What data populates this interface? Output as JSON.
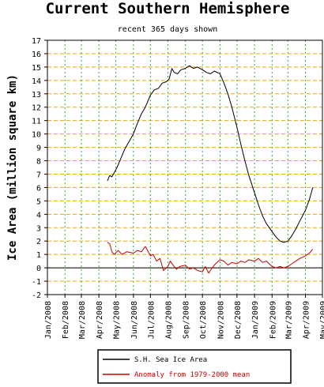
{
  "chart_data": {
    "type": "line",
    "title": "Current Southern Hemisphere",
    "subtitle": "recent 365 days shown",
    "ylabel": "Ice Area (million square km)",
    "xlabel": "",
    "ylim": [
      -2,
      17
    ],
    "yticks": [
      -2,
      -1,
      0,
      1,
      2,
      3,
      4,
      5,
      6,
      7,
      8,
      9,
      10,
      11,
      12,
      13,
      14,
      15,
      16,
      17
    ],
    "xlim": [
      "2008-01-01",
      "2009-05-01"
    ],
    "xticks": [
      {
        "date": "2008-01-01",
        "label": "Jan/2008"
      },
      {
        "date": "2008-02-01",
        "label": "Feb/2008"
      },
      {
        "date": "2008-03-01",
        "label": "Mar/2008"
      },
      {
        "date": "2008-04-01",
        "label": "Apr/2008"
      },
      {
        "date": "2008-05-01",
        "label": "May/2008"
      },
      {
        "date": "2008-06-01",
        "label": "Jun/2008"
      },
      {
        "date": "2008-07-01",
        "label": "Jul/2008"
      },
      {
        "date": "2008-08-01",
        "label": "Aug/2008"
      },
      {
        "date": "2008-09-01",
        "label": "Sep/2008"
      },
      {
        "date": "2008-10-01",
        "label": "Oct/2008"
      },
      {
        "date": "2008-11-01",
        "label": "Nov/2008"
      },
      {
        "date": "2008-12-01",
        "label": "Dec/2008"
      },
      {
        "date": "2009-01-01",
        "label": "Jan/2009"
      },
      {
        "date": "2009-02-01",
        "label": "Feb/2009"
      },
      {
        "date": "2009-03-01",
        "label": "Mar/2009"
      },
      {
        "date": "2009-04-01",
        "label": "Apr/2009"
      },
      {
        "date": "2009-05-01",
        "label": "May/2009"
      }
    ],
    "grid": true,
    "grid_colors": {
      "horizontal": "#e8a800",
      "vertical": "#33aa33"
    },
    "zero_line": true,
    "legend_position": "bottom",
    "series": [
      {
        "name": "S.H. Sea Ice Area",
        "color": "#000000",
        "points": [
          [
            "2008-04-16",
            6.5
          ],
          [
            "2008-04-20",
            6.9
          ],
          [
            "2008-04-24",
            6.8
          ],
          [
            "2008-04-28",
            7.1
          ],
          [
            "2008-05-03",
            7.5
          ],
          [
            "2008-05-10",
            8.2
          ],
          [
            "2008-05-17",
            8.9
          ],
          [
            "2008-05-24",
            9.4
          ],
          [
            "2008-06-01",
            10.0
          ],
          [
            "2008-06-08",
            10.8
          ],
          [
            "2008-06-15",
            11.5
          ],
          [
            "2008-06-22",
            12.0
          ],
          [
            "2008-07-01",
            12.9
          ],
          [
            "2008-07-08",
            13.3
          ],
          [
            "2008-07-15",
            13.4
          ],
          [
            "2008-07-22",
            13.8
          ],
          [
            "2008-07-29",
            13.9
          ],
          [
            "2008-08-03",
            14.1
          ],
          [
            "2008-08-08",
            14.9
          ],
          [
            "2008-08-12",
            14.6
          ],
          [
            "2008-08-18",
            14.5
          ],
          [
            "2008-08-24",
            14.8
          ],
          [
            "2008-09-01",
            14.9
          ],
          [
            "2008-09-08",
            15.1
          ],
          [
            "2008-09-15",
            14.9
          ],
          [
            "2008-09-22",
            15.0
          ],
          [
            "2008-10-01",
            14.8
          ],
          [
            "2008-10-08",
            14.6
          ],
          [
            "2008-10-15",
            14.5
          ],
          [
            "2008-10-22",
            14.7
          ],
          [
            "2008-11-01",
            14.5
          ],
          [
            "2008-11-08",
            13.8
          ],
          [
            "2008-11-15",
            13.0
          ],
          [
            "2008-11-22",
            12.0
          ],
          [
            "2008-12-01",
            10.5
          ],
          [
            "2008-12-08",
            9.2
          ],
          [
            "2008-12-15",
            8.0
          ],
          [
            "2008-12-22",
            6.9
          ],
          [
            "2009-01-01",
            5.6
          ],
          [
            "2009-01-08",
            4.7
          ],
          [
            "2009-01-15",
            3.9
          ],
          [
            "2009-01-22",
            3.3
          ],
          [
            "2009-02-01",
            2.7
          ],
          [
            "2009-02-08",
            2.3
          ],
          [
            "2009-02-15",
            2.0
          ],
          [
            "2009-02-22",
            1.9
          ],
          [
            "2009-03-01",
            2.0
          ],
          [
            "2009-03-08",
            2.4
          ],
          [
            "2009-03-15",
            2.9
          ],
          [
            "2009-03-22",
            3.5
          ],
          [
            "2009-04-01",
            4.3
          ],
          [
            "2009-04-08",
            5.1
          ],
          [
            "2009-04-14",
            6.0
          ]
        ]
      },
      {
        "name": "Anomaly from 1979-2000 mean",
        "color": "#cc0000",
        "points": [
          [
            "2008-04-16",
            1.9
          ],
          [
            "2008-04-20",
            1.8
          ],
          [
            "2008-04-24",
            1.2
          ],
          [
            "2008-04-28",
            1.0
          ],
          [
            "2008-05-05",
            1.3
          ],
          [
            "2008-05-12",
            1.0
          ],
          [
            "2008-05-20",
            1.2
          ],
          [
            "2008-06-01",
            1.1
          ],
          [
            "2008-06-08",
            1.3
          ],
          [
            "2008-06-15",
            1.2
          ],
          [
            "2008-06-22",
            1.6
          ],
          [
            "2008-07-01",
            0.9
          ],
          [
            "2008-07-06",
            1.0
          ],
          [
            "2008-07-12",
            0.5
          ],
          [
            "2008-07-18",
            0.7
          ],
          [
            "2008-07-24",
            -0.2
          ],
          [
            "2008-08-01",
            0.1
          ],
          [
            "2008-08-05",
            0.5
          ],
          [
            "2008-08-10",
            0.2
          ],
          [
            "2008-08-16",
            -0.1
          ],
          [
            "2008-08-22",
            0.1
          ],
          [
            "2008-09-01",
            0.2
          ],
          [
            "2008-09-08",
            -0.1
          ],
          [
            "2008-09-15",
            0.0
          ],
          [
            "2008-09-22",
            -0.2
          ],
          [
            "2008-10-01",
            -0.3
          ],
          [
            "2008-10-06",
            0.1
          ],
          [
            "2008-10-12",
            -0.4
          ],
          [
            "2008-10-18",
            0.0
          ],
          [
            "2008-10-24",
            0.3
          ],
          [
            "2008-11-01",
            0.6
          ],
          [
            "2008-11-08",
            0.5
          ],
          [
            "2008-11-15",
            0.2
          ],
          [
            "2008-11-22",
            0.4
          ],
          [
            "2008-12-01",
            0.3
          ],
          [
            "2008-12-08",
            0.5
          ],
          [
            "2008-12-15",
            0.4
          ],
          [
            "2008-12-22",
            0.6
          ],
          [
            "2009-01-01",
            0.5
          ],
          [
            "2009-01-08",
            0.7
          ],
          [
            "2009-01-15",
            0.4
          ],
          [
            "2009-01-22",
            0.5
          ],
          [
            "2009-02-01",
            0.1
          ],
          [
            "2009-02-08",
            0.0
          ],
          [
            "2009-02-15",
            0.1
          ],
          [
            "2009-02-22",
            0.0
          ],
          [
            "2009-03-01",
            0.1
          ],
          [
            "2009-03-08",
            0.3
          ],
          [
            "2009-03-15",
            0.5
          ],
          [
            "2009-03-22",
            0.7
          ],
          [
            "2009-04-01",
            0.9
          ],
          [
            "2009-04-08",
            1.1
          ],
          [
            "2009-04-14",
            1.4
          ]
        ]
      }
    ]
  }
}
